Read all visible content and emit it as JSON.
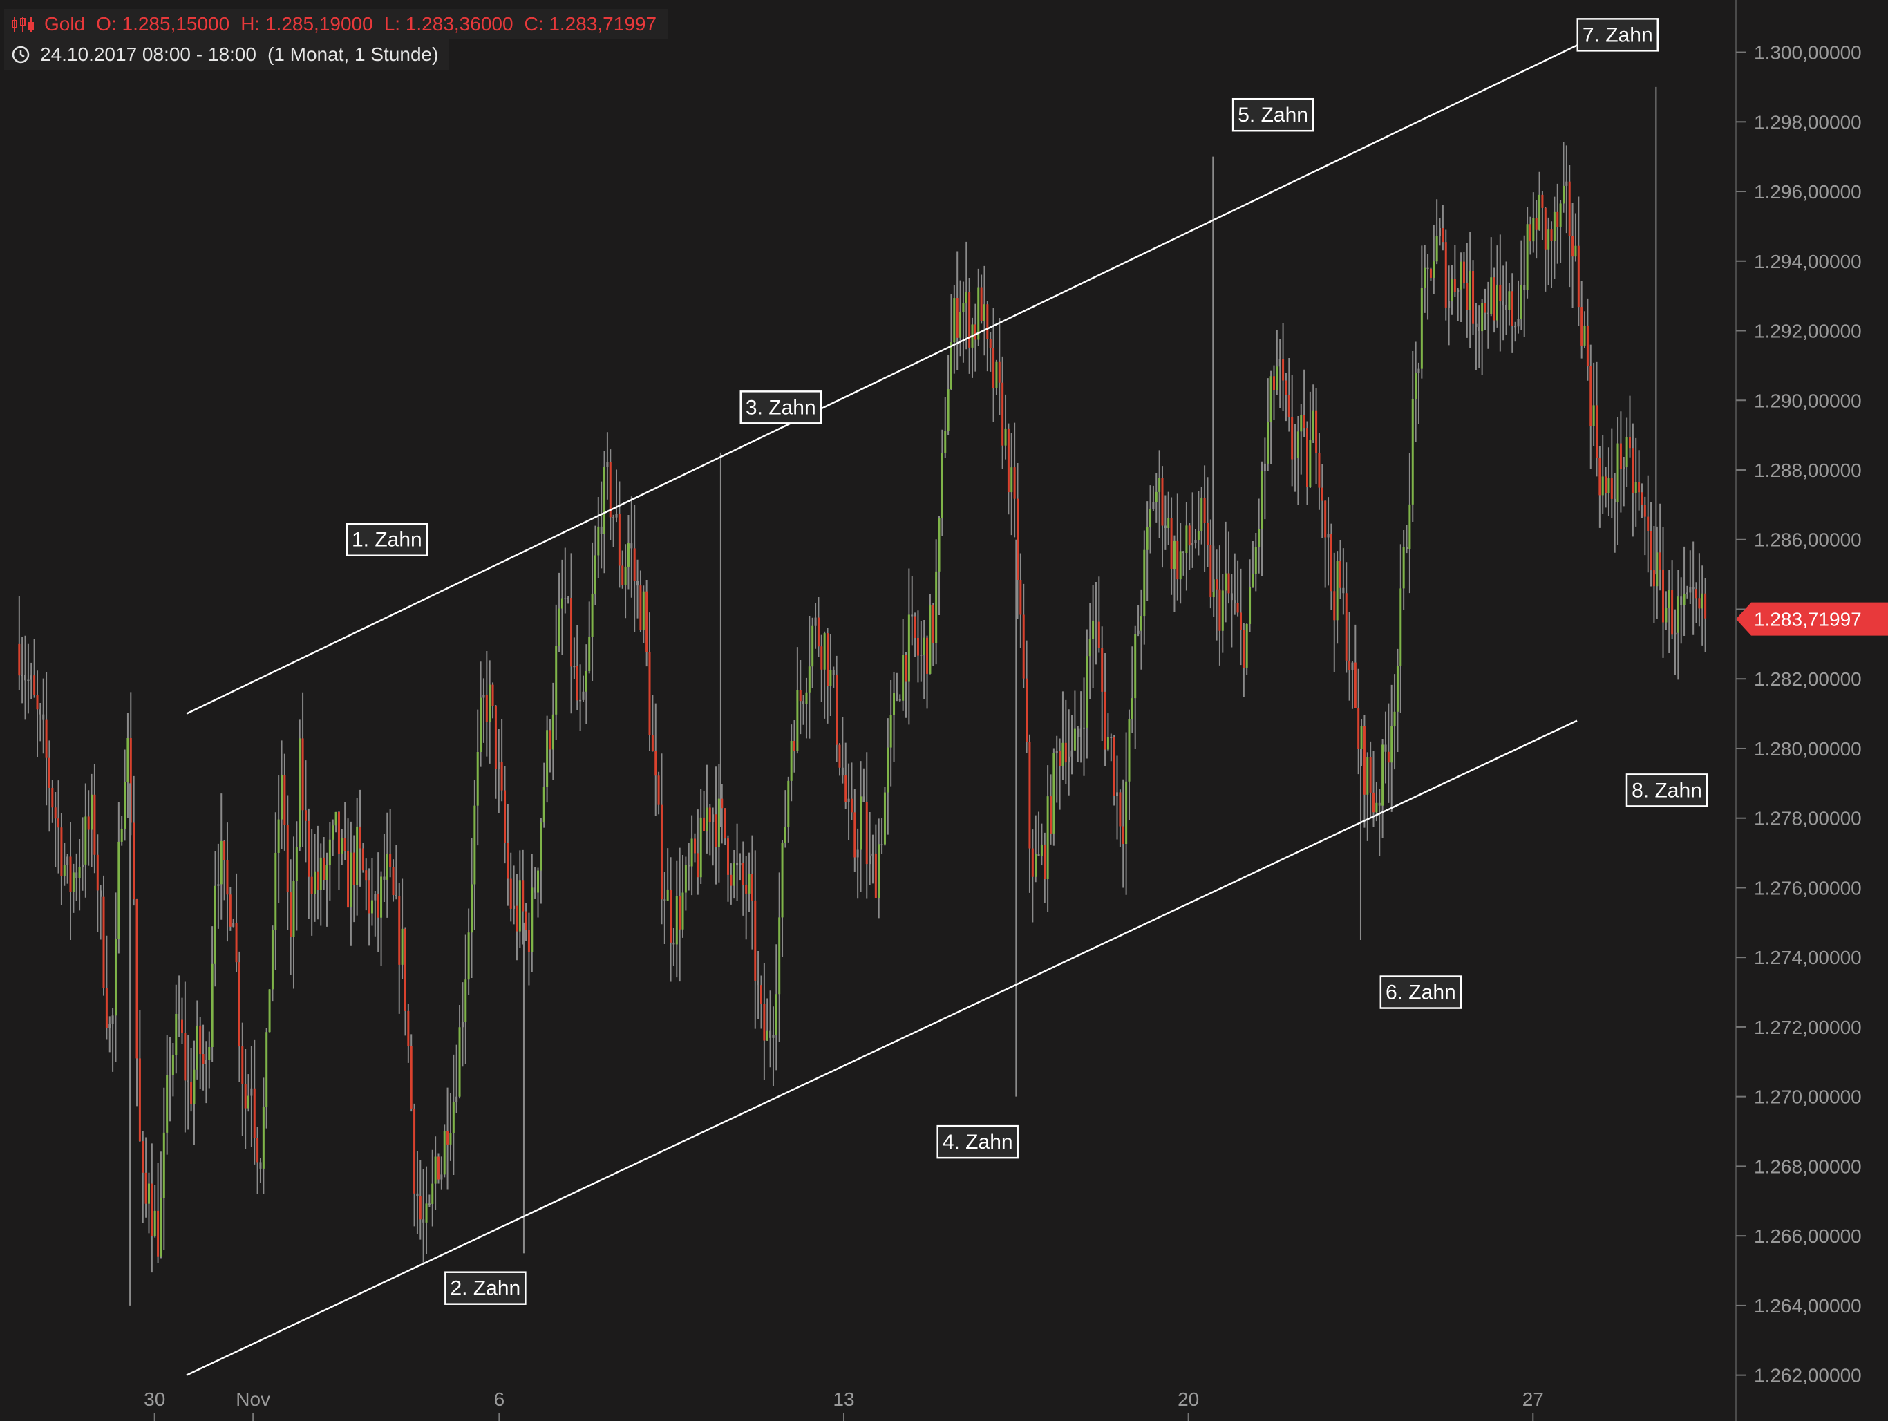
{
  "header": {
    "instrument": "Gold",
    "open": "O: 1.285,15000",
    "high": "H: 1.285,19000",
    "low": "L: 1.283,36000",
    "close": "C: 1.283,71997",
    "period": "24.10.2017 08:00 - 18:00",
    "range": "(1 Monat, 1 Stunde)",
    "accent_color": "#e8393b"
  },
  "chart_data": {
    "type": "candlestick",
    "title": "Gold",
    "ylim": [
      1261000,
      1301500
    ],
    "y_ticks": [
      1262000,
      1264000,
      1266000,
      1268000,
      1270000,
      1272000,
      1274000,
      1276000,
      1278000,
      1280000,
      1282000,
      1284000,
      1286000,
      1288000,
      1290000,
      1292000,
      1294000,
      1296000,
      1298000,
      1300000
    ],
    "y_tick_labels": [
      "1.262,00000",
      "1.264,00000",
      "1.266,00000",
      "1.268,00000",
      "1.270,00000",
      "1.272,00000",
      "1.274,00000",
      "1.276,00000",
      "1.278,00000",
      "1.280,00000",
      "1.282,00000",
      "1.284,00000",
      "1.286,00000",
      "1.288,00000",
      "1.290,00000",
      "1.292,00000",
      "1.294,00000",
      "1.296,00000",
      "1.298,00000",
      "1.300,00000"
    ],
    "x_range": [
      "2017-10-27",
      "2017-11-30"
    ],
    "x_ticks": [
      {
        "date": "2017-10-30",
        "label": "30"
      },
      {
        "date": "2017-11-01",
        "label": "Nov"
      },
      {
        "date": "2017-11-06",
        "label": "6"
      },
      {
        "date": "2017-11-13",
        "label": "13"
      },
      {
        "date": "2017-11-20",
        "label": "20"
      },
      {
        "date": "2017-11-27",
        "label": "27"
      }
    ],
    "path": [
      [
        "2017-10-27",
        1283000
      ],
      [
        "2017-10-27",
        1280000
      ],
      [
        "2017-10-28",
        1276000
      ],
      [
        "2017-10-28",
        1278000
      ],
      [
        "2017-10-29",
        1272500
      ],
      [
        "2017-10-29",
        1271500
      ],
      [
        "2017-10-29",
        1273000
      ],
      [
        "2017-10-29",
        1276500
      ],
      [
        "2017-10-29",
        1279000
      ],
      [
        "2017-10-29",
        1280500
      ],
      [
        "2017-10-29",
        1279000
      ],
      [
        "2017-10-29",
        1276000
      ],
      [
        "2017-10-29",
        1270000
      ],
      [
        "2017-10-29",
        1267500
      ],
      [
        "2017-10-29",
        1266500
      ],
      [
        "2017-10-29",
        1268000
      ],
      [
        "2017-10-29",
        1266500
      ],
      [
        "2017-10-30",
        1266000
      ],
      [
        "2017-10-30",
        1271000
      ],
      [
        "2017-10-30",
        1272000
      ],
      [
        "2017-10-30",
        1270000
      ],
      [
        "2017-10-30",
        1271500
      ],
      [
        "2017-10-31",
        1270500
      ],
      [
        "2017-10-31",
        1273000
      ],
      [
        "2017-10-31",
        1276500
      ],
      [
        "2017-10-31",
        1277000
      ],
      [
        "2017-10-31",
        1276000
      ],
      [
        "2017-10-31",
        1275500
      ],
      [
        "2017-10-31",
        1276000
      ],
      [
        "2017-10-31",
        1273000
      ],
      [
        "2017-10-31",
        1271000
      ],
      [
        "2017-10-31",
        1269500
      ],
      [
        "2017-10-31",
        1271000
      ],
      [
        "2017-11-01",
        1269000
      ],
      [
        "2017-11-01",
        1268500
      ],
      [
        "2017-11-01",
        1270000
      ],
      [
        "2017-11-01",
        1274000
      ],
      [
        "2017-11-01",
        1276000
      ],
      [
        "2017-11-01",
        1279000
      ],
      [
        "2017-11-01",
        1278000
      ],
      [
        "2017-11-01",
        1274000
      ],
      [
        "2017-11-01",
        1276000
      ],
      [
        "2017-11-01",
        1279500
      ],
      [
        "2017-11-02",
        1277000
      ],
      [
        "2017-11-02",
        1276000
      ],
      [
        "2017-11-02",
        1276500
      ],
      [
        "2017-11-02",
        1277500
      ],
      [
        "2017-11-02",
        1276000
      ],
      [
        "2017-11-03",
        1277000
      ],
      [
        "2017-11-03",
        1276000
      ],
      [
        "2017-11-03",
        1275000
      ],
      [
        "2017-11-03",
        1276500
      ],
      [
        "2017-11-03",
        1275000
      ],
      [
        "2017-11-04",
        1274000
      ],
      [
        "2017-11-04",
        1271000
      ],
      [
        "2017-11-04",
        1268000
      ],
      [
        "2017-11-04",
        1266500
      ],
      [
        "2017-11-04",
        1266000
      ],
      [
        "2017-11-04",
        1266500
      ],
      [
        "2017-11-04",
        1268500
      ],
      [
        "2017-11-04",
        1268000
      ],
      [
        "2017-11-04",
        1269500
      ],
      [
        "2017-11-05",
        1270000
      ],
      [
        "2017-11-05",
        1272000
      ],
      [
        "2017-11-05",
        1274500
      ],
      [
        "2017-11-05",
        1278000
      ],
      [
        "2017-11-05",
        1281000
      ],
      [
        "2017-11-05",
        1281500
      ],
      [
        "2017-11-05",
        1280000
      ],
      [
        "2017-11-06",
        1278000
      ],
      [
        "2017-11-06",
        1276000
      ],
      [
        "2017-11-06",
        1275000
      ],
      [
        "2017-11-06",
        1275500
      ],
      [
        "2017-11-06",
        1274500
      ],
      [
        "2017-11-06",
        1275500
      ],
      [
        "2017-11-06",
        1277500
      ],
      [
        "2017-11-06",
        1279500
      ],
      [
        "2017-11-07",
        1281000
      ],
      [
        "2017-11-07",
        1283000
      ],
      [
        "2017-11-07",
        1284500
      ],
      [
        "2017-11-07",
        1283000
      ],
      [
        "2017-11-07",
        1281500
      ],
      [
        "2017-11-07",
        1280500
      ],
      [
        "2017-11-07",
        1282500
      ],
      [
        "2017-11-07",
        1285000
      ],
      [
        "2017-11-08",
        1287000
      ],
      [
        "2017-11-08",
        1287500
      ],
      [
        "2017-11-08",
        1286500
      ],
      [
        "2017-11-08",
        1285000
      ],
      [
        "2017-11-08",
        1286000
      ],
      [
        "2017-11-08",
        1284500
      ],
      [
        "2017-11-08",
        1284000
      ],
      [
        "2017-11-09",
        1280000
      ],
      [
        "2017-11-09",
        1276500
      ],
      [
        "2017-11-09",
        1275000
      ],
      [
        "2017-11-09",
        1275500
      ],
      [
        "2017-11-09",
        1276500
      ],
      [
        "2017-11-10",
        1277000
      ],
      [
        "2017-11-10",
        1278500
      ],
      [
        "2017-11-10",
        1278000
      ],
      [
        "2017-11-10",
        1277500
      ],
      [
        "2017-11-10",
        1276500
      ],
      [
        "2017-11-10",
        1276000
      ],
      [
        "2017-11-11",
        1276000
      ],
      [
        "2017-11-11",
        1274000
      ],
      [
        "2017-11-11",
        1272000
      ],
      [
        "2017-11-11",
        1271500
      ],
      [
        "2017-11-11",
        1272500
      ],
      [
        "2017-11-11",
        1275000
      ],
      [
        "2017-11-11",
        1278000
      ],
      [
        "2017-11-11",
        1280500
      ],
      [
        "2017-11-12",
        1281500
      ],
      [
        "2017-11-12",
        1283500
      ],
      [
        "2017-11-12",
        1283000
      ],
      [
        "2017-11-12",
        1280500
      ],
      [
        "2017-11-13",
        1278000
      ],
      [
        "2017-11-13",
        1277000
      ],
      [
        "2017-11-13",
        1278500
      ],
      [
        "2017-11-13",
        1276500
      ],
      [
        "2017-11-13",
        1276500
      ],
      [
        "2017-11-13",
        1278000
      ],
      [
        "2017-11-13",
        1280000
      ],
      [
        "2017-11-14",
        1281500
      ],
      [
        "2017-11-14",
        1282500
      ],
      [
        "2017-11-14",
        1283000
      ],
      [
        "2017-11-14",
        1283000
      ],
      [
        "2017-11-14",
        1282500
      ],
      [
        "2017-11-14",
        1283000
      ],
      [
        "2017-11-14",
        1283500
      ],
      [
        "2017-11-14",
        1286000
      ],
      [
        "2017-11-15",
        1290000
      ],
      [
        "2017-11-15",
        1292000
      ],
      [
        "2017-11-15",
        1293000
      ],
      [
        "2017-11-15",
        1292500
      ],
      [
        "2017-11-15",
        1292000
      ],
      [
        "2017-11-15",
        1293000
      ],
      [
        "2017-11-15",
        1291000
      ],
      [
        "2017-11-16",
        1290500
      ],
      [
        "2017-11-16",
        1289500
      ],
      [
        "2017-11-16",
        1288000
      ],
      [
        "2017-11-16",
        1286000
      ],
      [
        "2017-11-16",
        1282000
      ],
      [
        "2017-11-16",
        1277000
      ],
      [
        "2017-11-16",
        1276500
      ],
      [
        "2017-11-17",
        1277000
      ],
      [
        "2017-11-17",
        1278500
      ],
      [
        "2017-11-17",
        1280000
      ],
      [
        "2017-11-17",
        1280500
      ],
      [
        "2017-11-17",
        1279500
      ],
      [
        "2017-11-17",
        1280500
      ],
      [
        "2017-11-17",
        1282000
      ],
      [
        "2017-11-18",
        1284000
      ],
      [
        "2017-11-18",
        1282500
      ],
      [
        "2017-11-18",
        1280500
      ],
      [
        "2017-11-18",
        1280000
      ],
      [
        "2017-11-18",
        1278500
      ],
      [
        "2017-11-18",
        1278000
      ],
      [
        "2017-11-18",
        1280500
      ],
      [
        "2017-11-18",
        1283000
      ],
      [
        "2017-11-19",
        1285000
      ],
      [
        "2017-11-19",
        1287500
      ],
      [
        "2017-11-19",
        1287000
      ],
      [
        "2017-11-19",
        1285500
      ],
      [
        "2017-11-19",
        1285500
      ],
      [
        "2017-11-20",
        1286000
      ],
      [
        "2017-11-20",
        1286500
      ],
      [
        "2017-11-20",
        1285000
      ],
      [
        "2017-11-20",
        1284000
      ],
      [
        "2017-11-20",
        1284500
      ],
      [
        "2017-11-20",
        1284000
      ],
      [
        "2017-11-21",
        1283000
      ],
      [
        "2017-11-21",
        1283500
      ],
      [
        "2017-11-21",
        1285500
      ],
      [
        "2017-11-21",
        1287500
      ],
      [
        "2017-11-21",
        1289500
      ],
      [
        "2017-11-21",
        1291000
      ],
      [
        "2017-11-21",
        1290000
      ],
      [
        "2017-11-22",
        1288500
      ],
      [
        "2017-11-22",
        1289000
      ],
      [
        "2017-11-22",
        1288000
      ],
      [
        "2017-11-22",
        1289500
      ],
      [
        "2017-11-22",
        1287000
      ],
      [
        "2017-11-22",
        1284500
      ],
      [
        "2017-11-23",
        1284500
      ],
      [
        "2017-11-23",
        1283000
      ],
      [
        "2017-11-23",
        1280500
      ],
      [
        "2017-11-23",
        1279500
      ],
      [
        "2017-11-23",
        1278500
      ],
      [
        "2017-11-23",
        1279000
      ],
      [
        "2017-11-24",
        1280500
      ],
      [
        "2017-11-24",
        1282500
      ],
      [
        "2017-11-24",
        1286000
      ],
      [
        "2017-11-24",
        1290000
      ],
      [
        "2017-11-24",
        1292500
      ],
      [
        "2017-11-24",
        1294000
      ],
      [
        "2017-11-25",
        1294500
      ],
      [
        "2017-11-25",
        1293000
      ],
      [
        "2017-11-25",
        1294000
      ],
      [
        "2017-11-25",
        1293000
      ],
      [
        "2017-11-25",
        1292500
      ],
      [
        "2017-11-26",
        1293000
      ],
      [
        "2017-11-26",
        1293000
      ],
      [
        "2017-11-26",
        1292000
      ],
      [
        "2017-11-26",
        1292500
      ],
      [
        "2017-11-26",
        1292500
      ],
      [
        "2017-11-26",
        1293500
      ],
      [
        "2017-11-26",
        1294500
      ],
      [
        "2017-11-27",
        1295500
      ],
      [
        "2017-11-27",
        1294500
      ],
      [
        "2017-11-27",
        1295000
      ],
      [
        "2017-11-27",
        1295500
      ],
      [
        "2017-11-27",
        1293500
      ],
      [
        "2017-11-28",
        1291500
      ],
      [
        "2017-11-28",
        1289500
      ],
      [
        "2017-11-28",
        1288000
      ],
      [
        "2017-11-28",
        1287000
      ],
      [
        "2017-11-28",
        1287500
      ],
      [
        "2017-11-28",
        1288500
      ],
      [
        "2017-11-28",
        1288000
      ],
      [
        "2017-11-29",
        1287500
      ],
      [
        "2017-11-29",
        1286500
      ],
      [
        "2017-11-29",
        1285500
      ],
      [
        "2017-11-29",
        1284500
      ],
      [
        "2017-11-29",
        1284000
      ],
      [
        "2017-11-29",
        1283800
      ],
      [
        "2017-11-30",
        1283720
      ]
    ],
    "swing_points": [
      {
        "date": "2017-10-29",
        "value": 1264000
      },
      {
        "date": "2017-11-06",
        "value": 1265500
      },
      {
        "date": "2017-11-10",
        "value": 1288500
      },
      {
        "date": "2017-11-16",
        "value": 1270000
      },
      {
        "date": "2017-11-20",
        "value": 1297000
      },
      {
        "date": "2017-11-23",
        "value": 1274500
      },
      {
        "date": "2017-11-29",
        "value": 1299000
      }
    ],
    "channel_lines": [
      {
        "name": "upper",
        "from": [
          "2017-10-27",
          1281000
        ],
        "to": [
          "2017-11-30",
          1300200
        ]
      },
      {
        "name": "lower",
        "from": [
          "2017-10-27",
          1262000
        ],
        "to": [
          "2017-11-30",
          1280800
        ]
      }
    ],
    "annotations": [
      {
        "text": "1. Zahn",
        "date": "2017-11-04",
        "value": 1286000
      },
      {
        "text": "2. Zahn",
        "date": "2017-11-06",
        "value": 1264500
      },
      {
        "text": "3. Zahn",
        "date": "2017-11-12",
        "value": 1289800
      },
      {
        "text": "4. Zahn",
        "date": "2017-11-16",
        "value": 1268700
      },
      {
        "text": "5. Zahn",
        "date": "2017-11-22",
        "value": 1298200
      },
      {
        "text": "6. Zahn",
        "date": "2017-11-25",
        "value": 1273000
      },
      {
        "text": "7. Zahn",
        "date": "2017-11-29",
        "value": 1300500
      },
      {
        "text": "8. Zahn",
        "date": "2017-11-30",
        "value": 1278800
      }
    ],
    "last_price": {
      "value": 1283720,
      "label": "1.283,71997",
      "color": "#e8393b"
    },
    "up_color": "#7fb449",
    "down_color": "#d9422e",
    "neutral_color": "#8a8a8a",
    "background": "#1c1b1b",
    "grid": false
  }
}
